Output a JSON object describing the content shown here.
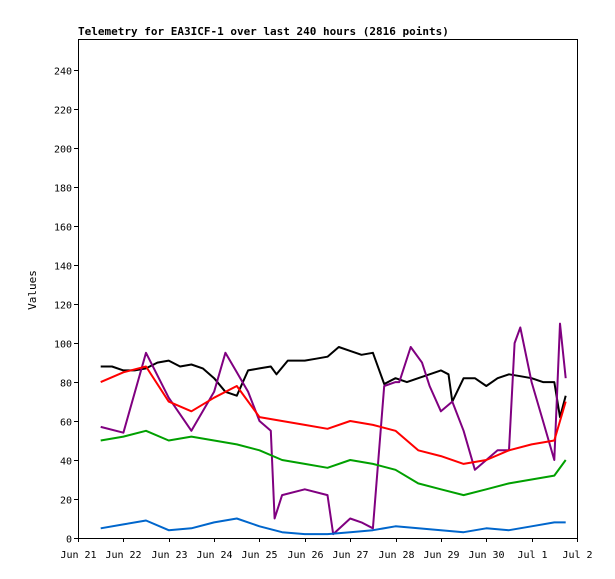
{
  "chart_data": {
    "type": "line",
    "title": "Telemetry for EA3ICF-1 over last 240 hours (2816 points)",
    "xlabel": "",
    "ylabel": "Values",
    "ylim": [
      0,
      256
    ],
    "xlim": [
      "Jun 21",
      "Jul 2"
    ],
    "x_ticks": [
      "Jun 21",
      "Jun 22",
      "Jun 23",
      "Jun 24",
      "Jun 25",
      "Jun 26",
      "Jun 27",
      "Jun 28",
      "Jun 29",
      "Jun 30",
      "Jul 1",
      "Jul 2"
    ],
    "y_ticks": [
      0,
      20,
      40,
      60,
      80,
      100,
      120,
      140,
      160,
      180,
      200,
      220,
      240
    ],
    "grid": false,
    "legend": "none",
    "x_start": "Jun 21",
    "series": [
      {
        "color": "#000000",
        "x": [
          "2023-06-21T12:00",
          "2023-06-21T18:00",
          "2023-06-22T00:00",
          "2023-06-22T06:00",
          "2023-06-22T12:00",
          "2023-06-22T18:00",
          "2023-06-23T00:00",
          "2023-06-23T06:00",
          "2023-06-23T12:00",
          "2023-06-23T18:00",
          "2023-06-24T00:00",
          "2023-06-24T06:00",
          "2023-06-24T12:00",
          "2023-06-24T18:00",
          "2023-06-25T00:00",
          "2023-06-25T06:00",
          "2023-06-25T09:00",
          "2023-06-25T15:00",
          "2023-06-26T00:00",
          "2023-06-26T06:00",
          "2023-06-26T12:00",
          "2023-06-26T18:00",
          "2023-06-27T00:00",
          "2023-06-27T06:00",
          "2023-06-27T12:00",
          "2023-06-27T18:00",
          "2023-06-28T00:00",
          "2023-06-28T06:00",
          "2023-06-28T12:00",
          "2023-06-28T18:00",
          "2023-06-29T00:00",
          "2023-06-29T04:00",
          "2023-06-29T06:00",
          "2023-06-29T12:00",
          "2023-06-29T18:00",
          "2023-06-30T00:00",
          "2023-06-30T06:00",
          "2023-06-30T12:00",
          "2023-06-30T18:00",
          "2023-07-01T00:00",
          "2023-07-01T06:00",
          "2023-07-01T12:00",
          "2023-07-01T15:00",
          "2023-07-01T18:00"
        ],
        "values": [
          88,
          88,
          86,
          86,
          87,
          90,
          91,
          88,
          89,
          87,
          82,
          75,
          73,
          86,
          87,
          88,
          84,
          91,
          91,
          92,
          93,
          98,
          96,
          94,
          95,
          79,
          82,
          80,
          82,
          84,
          86,
          84,
          70,
          82,
          82,
          78,
          82,
          84,
          83,
          82,
          80,
          80,
          62,
          73
        ]
      },
      {
        "color": "#800080",
        "x": [
          "2023-06-21T12:00",
          "2023-06-22T00:00",
          "2023-06-22T12:00",
          "2023-06-23T00:00",
          "2023-06-23T12:00",
          "2023-06-24T00:00",
          "2023-06-24T06:00",
          "2023-06-24T12:00",
          "2023-06-24T18:00",
          "2023-06-25T00:00",
          "2023-06-25T06:00",
          "2023-06-25T08:00",
          "2023-06-25T12:00",
          "2023-06-26T00:00",
          "2023-06-26T12:00",
          "2023-06-26T15:00",
          "2023-06-27T00:00",
          "2023-06-27T06:00",
          "2023-06-27T12:00",
          "2023-06-27T18:00",
          "2023-06-28T00:00",
          "2023-06-28T02:00",
          "2023-06-28T08:00",
          "2023-06-28T14:00",
          "2023-06-28T18:00",
          "2023-06-29T00:00",
          "2023-06-29T06:00",
          "2023-06-29T12:00",
          "2023-06-29T18:00",
          "2023-06-30T00:00",
          "2023-06-30T06:00",
          "2023-06-30T12:00",
          "2023-06-30T15:00",
          "2023-06-30T18:00",
          "2023-07-01T00:00",
          "2023-07-01T06:00",
          "2023-07-01T12:00",
          "2023-07-01T15:00",
          "2023-07-01T18:00"
        ],
        "values": [
          57,
          54,
          95,
          72,
          55,
          75,
          95,
          85,
          75,
          60,
          55,
          10,
          22,
          25,
          22,
          2,
          10,
          8,
          5,
          78,
          80,
          80,
          98,
          90,
          78,
          65,
          70,
          55,
          35,
          40,
          45,
          45,
          100,
          108,
          80,
          60,
          40,
          110,
          82
        ]
      },
      {
        "color": "#ff0000",
        "x": [
          "2023-06-21T12:00",
          "2023-06-22T00:00",
          "2023-06-22T12:00",
          "2023-06-23T00:00",
          "2023-06-23T12:00",
          "2023-06-24T00:00",
          "2023-06-24T12:00",
          "2023-06-25T00:00",
          "2023-06-25T12:00",
          "2023-06-26T00:00",
          "2023-06-26T12:00",
          "2023-06-27T00:00",
          "2023-06-27T12:00",
          "2023-06-28T00:00",
          "2023-06-28T12:00",
          "2023-06-29T00:00",
          "2023-06-29T12:00",
          "2023-06-30T00:00",
          "2023-06-30T12:00",
          "2023-07-01T00:00",
          "2023-07-01T12:00",
          "2023-07-01T18:00"
        ],
        "values": [
          80,
          85,
          88,
          70,
          65,
          72,
          78,
          62,
          60,
          58,
          56,
          60,
          58,
          55,
          45,
          42,
          38,
          40,
          45,
          48,
          50,
          70
        ]
      },
      {
        "color": "#00a000",
        "x": [
          "2023-06-21T12:00",
          "2023-06-22T00:00",
          "2023-06-22T12:00",
          "2023-06-23T00:00",
          "2023-06-23T12:00",
          "2023-06-24T00:00",
          "2023-06-24T12:00",
          "2023-06-25T00:00",
          "2023-06-25T12:00",
          "2023-06-26T00:00",
          "2023-06-26T12:00",
          "2023-06-27T00:00",
          "2023-06-27T12:00",
          "2023-06-28T00:00",
          "2023-06-28T12:00",
          "2023-06-29T00:00",
          "2023-06-29T12:00",
          "2023-06-30T00:00",
          "2023-06-30T12:00",
          "2023-07-01T00:00",
          "2023-07-01T12:00",
          "2023-07-01T18:00"
        ],
        "values": [
          50,
          52,
          55,
          50,
          52,
          50,
          48,
          45,
          40,
          38,
          36,
          40,
          38,
          35,
          28,
          25,
          22,
          25,
          28,
          30,
          32,
          40
        ]
      },
      {
        "color": "#0066cc",
        "x": [
          "2023-06-21T12:00",
          "2023-06-22T00:00",
          "2023-06-22T12:00",
          "2023-06-23T00:00",
          "2023-06-23T12:00",
          "2023-06-24T00:00",
          "2023-06-24T12:00",
          "2023-06-25T00:00",
          "2023-06-25T12:00",
          "2023-06-26T00:00",
          "2023-06-26T12:00",
          "2023-06-27T00:00",
          "2023-06-27T12:00",
          "2023-06-28T00:00",
          "2023-06-28T12:00",
          "2023-06-29T00:00",
          "2023-06-29T12:00",
          "2023-06-30T00:00",
          "2023-06-30T12:00",
          "2023-07-01T00:00",
          "2023-07-01T12:00",
          "2023-07-01T18:00"
        ],
        "values": [
          5,
          7,
          9,
          4,
          5,
          8,
          10,
          6,
          3,
          2,
          2,
          3,
          4,
          6,
          5,
          4,
          3,
          5,
          4,
          6,
          8,
          8
        ]
      }
    ]
  }
}
